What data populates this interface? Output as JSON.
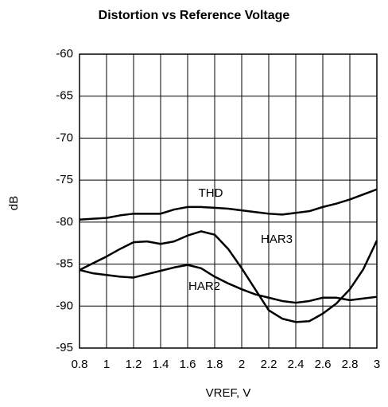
{
  "chart_data": {
    "type": "line",
    "title": "Distortion vs Reference Voltage",
    "x_label": "VREF, V",
    "y_label": "dB",
    "x": [
      0.8,
      0.9,
      1.0,
      1.1,
      1.2,
      1.3,
      1.4,
      1.5,
      1.6,
      1.7,
      1.8,
      1.9,
      2.0,
      2.1,
      2.2,
      2.3,
      2.4,
      2.5,
      2.6,
      2.7,
      2.8,
      2.9,
      3.0
    ],
    "series": [
      {
        "name": "THD",
        "color": "#000000",
        "values": [
          -79.7,
          -79.6,
          -79.5,
          -79.2,
          -79.0,
          -79.0,
          -79.0,
          -78.5,
          -78.2,
          -78.2,
          -78.3,
          -78.4,
          -78.6,
          -78.8,
          -79.0,
          -79.1,
          -78.9,
          -78.7,
          -78.2,
          -77.8,
          -77.3,
          -76.7,
          -76.1
        ]
      },
      {
        "name": "HAR3",
        "color": "#000000",
        "values": [
          -85.7,
          -84.9,
          -84.1,
          -83.2,
          -82.4,
          -82.3,
          -82.6,
          -82.3,
          -81.6,
          -81.1,
          -81.5,
          -83.2,
          -85.5,
          -88.0,
          -90.5,
          -91.5,
          -91.9,
          -91.8,
          -90.9,
          -89.7,
          -88.0,
          -85.6,
          -82.2
        ]
      },
      {
        "name": "HAR2",
        "color": "#000000",
        "values": [
          -85.7,
          -86.1,
          -86.3,
          -86.5,
          -86.6,
          -86.2,
          -85.8,
          -85.4,
          -85.1,
          -85.5,
          -86.5,
          -87.3,
          -88.0,
          -88.6,
          -89.0,
          -89.4,
          -89.6,
          -89.4,
          -89.0,
          -89.0,
          -89.3,
          -89.1,
          -88.9
        ]
      }
    ],
    "xlim": [
      0.8,
      3
    ],
    "xticks": [
      {
        "value": 0.8,
        "label": "0.8"
      },
      1,
      1.2,
      1.4,
      1.6,
      1.8,
      2,
      2.2,
      2.4,
      2.6,
      2.8,
      3
    ],
    "ylim": [
      -95,
      -60
    ],
    "yticks": [
      -60,
      -65,
      -70,
      -75,
      -80,
      -85,
      -90,
      -95
    ],
    "grid": true
  }
}
